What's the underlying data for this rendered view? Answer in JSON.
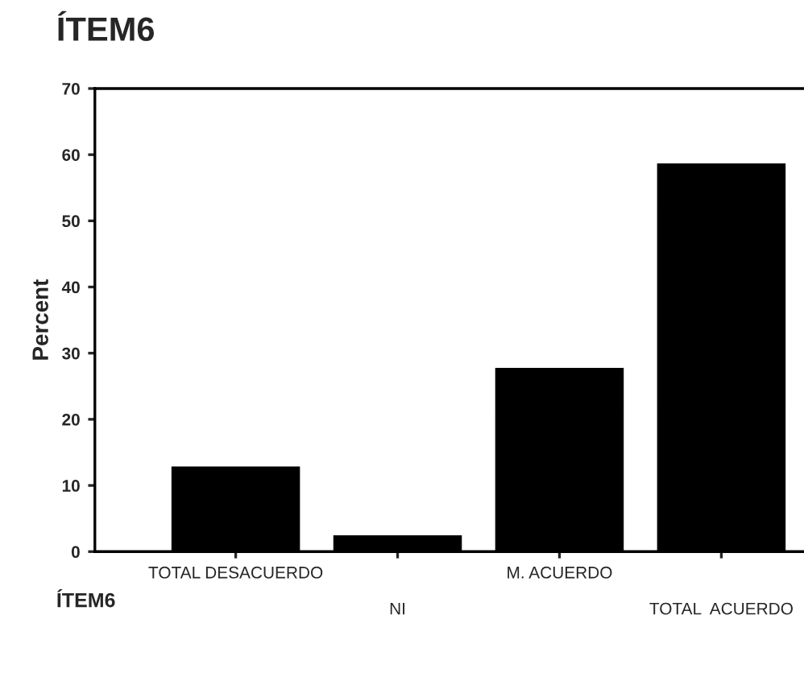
{
  "chart_data": {
    "type": "bar",
    "title": "ÍTEM6",
    "xlabel": "ÍTEM6",
    "ylabel": "Percent",
    "categories": [
      "TOTAL DESACUERDO",
      "NI",
      "M. ACUERDO",
      "TOTAL  ACUERDO"
    ],
    "values": [
      12.7,
      2.3,
      27.6,
      58.5
    ],
    "color": "#000000",
    "ylim": [
      0,
      70
    ],
    "yticks": [
      0,
      10,
      20,
      30,
      40,
      50,
      60,
      70
    ],
    "grid": false
  }
}
